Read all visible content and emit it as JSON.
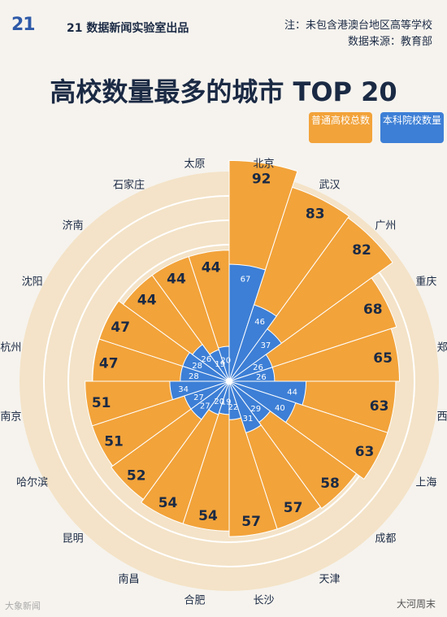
{
  "header": {
    "logo": "21",
    "producer": "21 数据新闻实验室出品",
    "note_line1": "注：未包含港澳台地区高等学校",
    "note_line2": "数据来源：教育部",
    "title": "高校数量最多的城市 TOP 20"
  },
  "legend": {
    "total": "普通高校总数",
    "undergrad": "本科院校数量"
  },
  "colors": {
    "orange": "#f2a33a",
    "blue": "#3d7fd6",
    "ring": "#f4e3c8",
    "ring_line": "#ffffff",
    "text_dark": "#1b2a44"
  },
  "chart_data": {
    "type": "radial_bar",
    "series": [
      {
        "name": "普通高校总数",
        "values": [
          92,
          83,
          82,
          68,
          65,
          63,
          63,
          58,
          57,
          57,
          54,
          54,
          52,
          51,
          51,
          47,
          47,
          44,
          44,
          44
        ]
      },
      {
        "name": "本科院校数量",
        "values": [
          67,
          46,
          37,
          26,
          26,
          44,
          40,
          29,
          31,
          22,
          19,
          20,
          27,
          27,
          34,
          28,
          28,
          26,
          19,
          20
        ]
      }
    ],
    "categories": [
      "北京",
      "武汉",
      "广州",
      "重庆",
      "郑州",
      "西安",
      "上海",
      "成都",
      "天津",
      "长沙",
      "合肥",
      "南昌",
      "昆明",
      "哈尔滨",
      "南京",
      "杭州",
      "沈阳",
      "济南",
      "石家庄",
      "太原"
    ],
    "ylim": [
      0,
      100
    ]
  },
  "watermarks": {
    "bottom_right": "大河周末",
    "bottom_left": "大象新闻"
  }
}
